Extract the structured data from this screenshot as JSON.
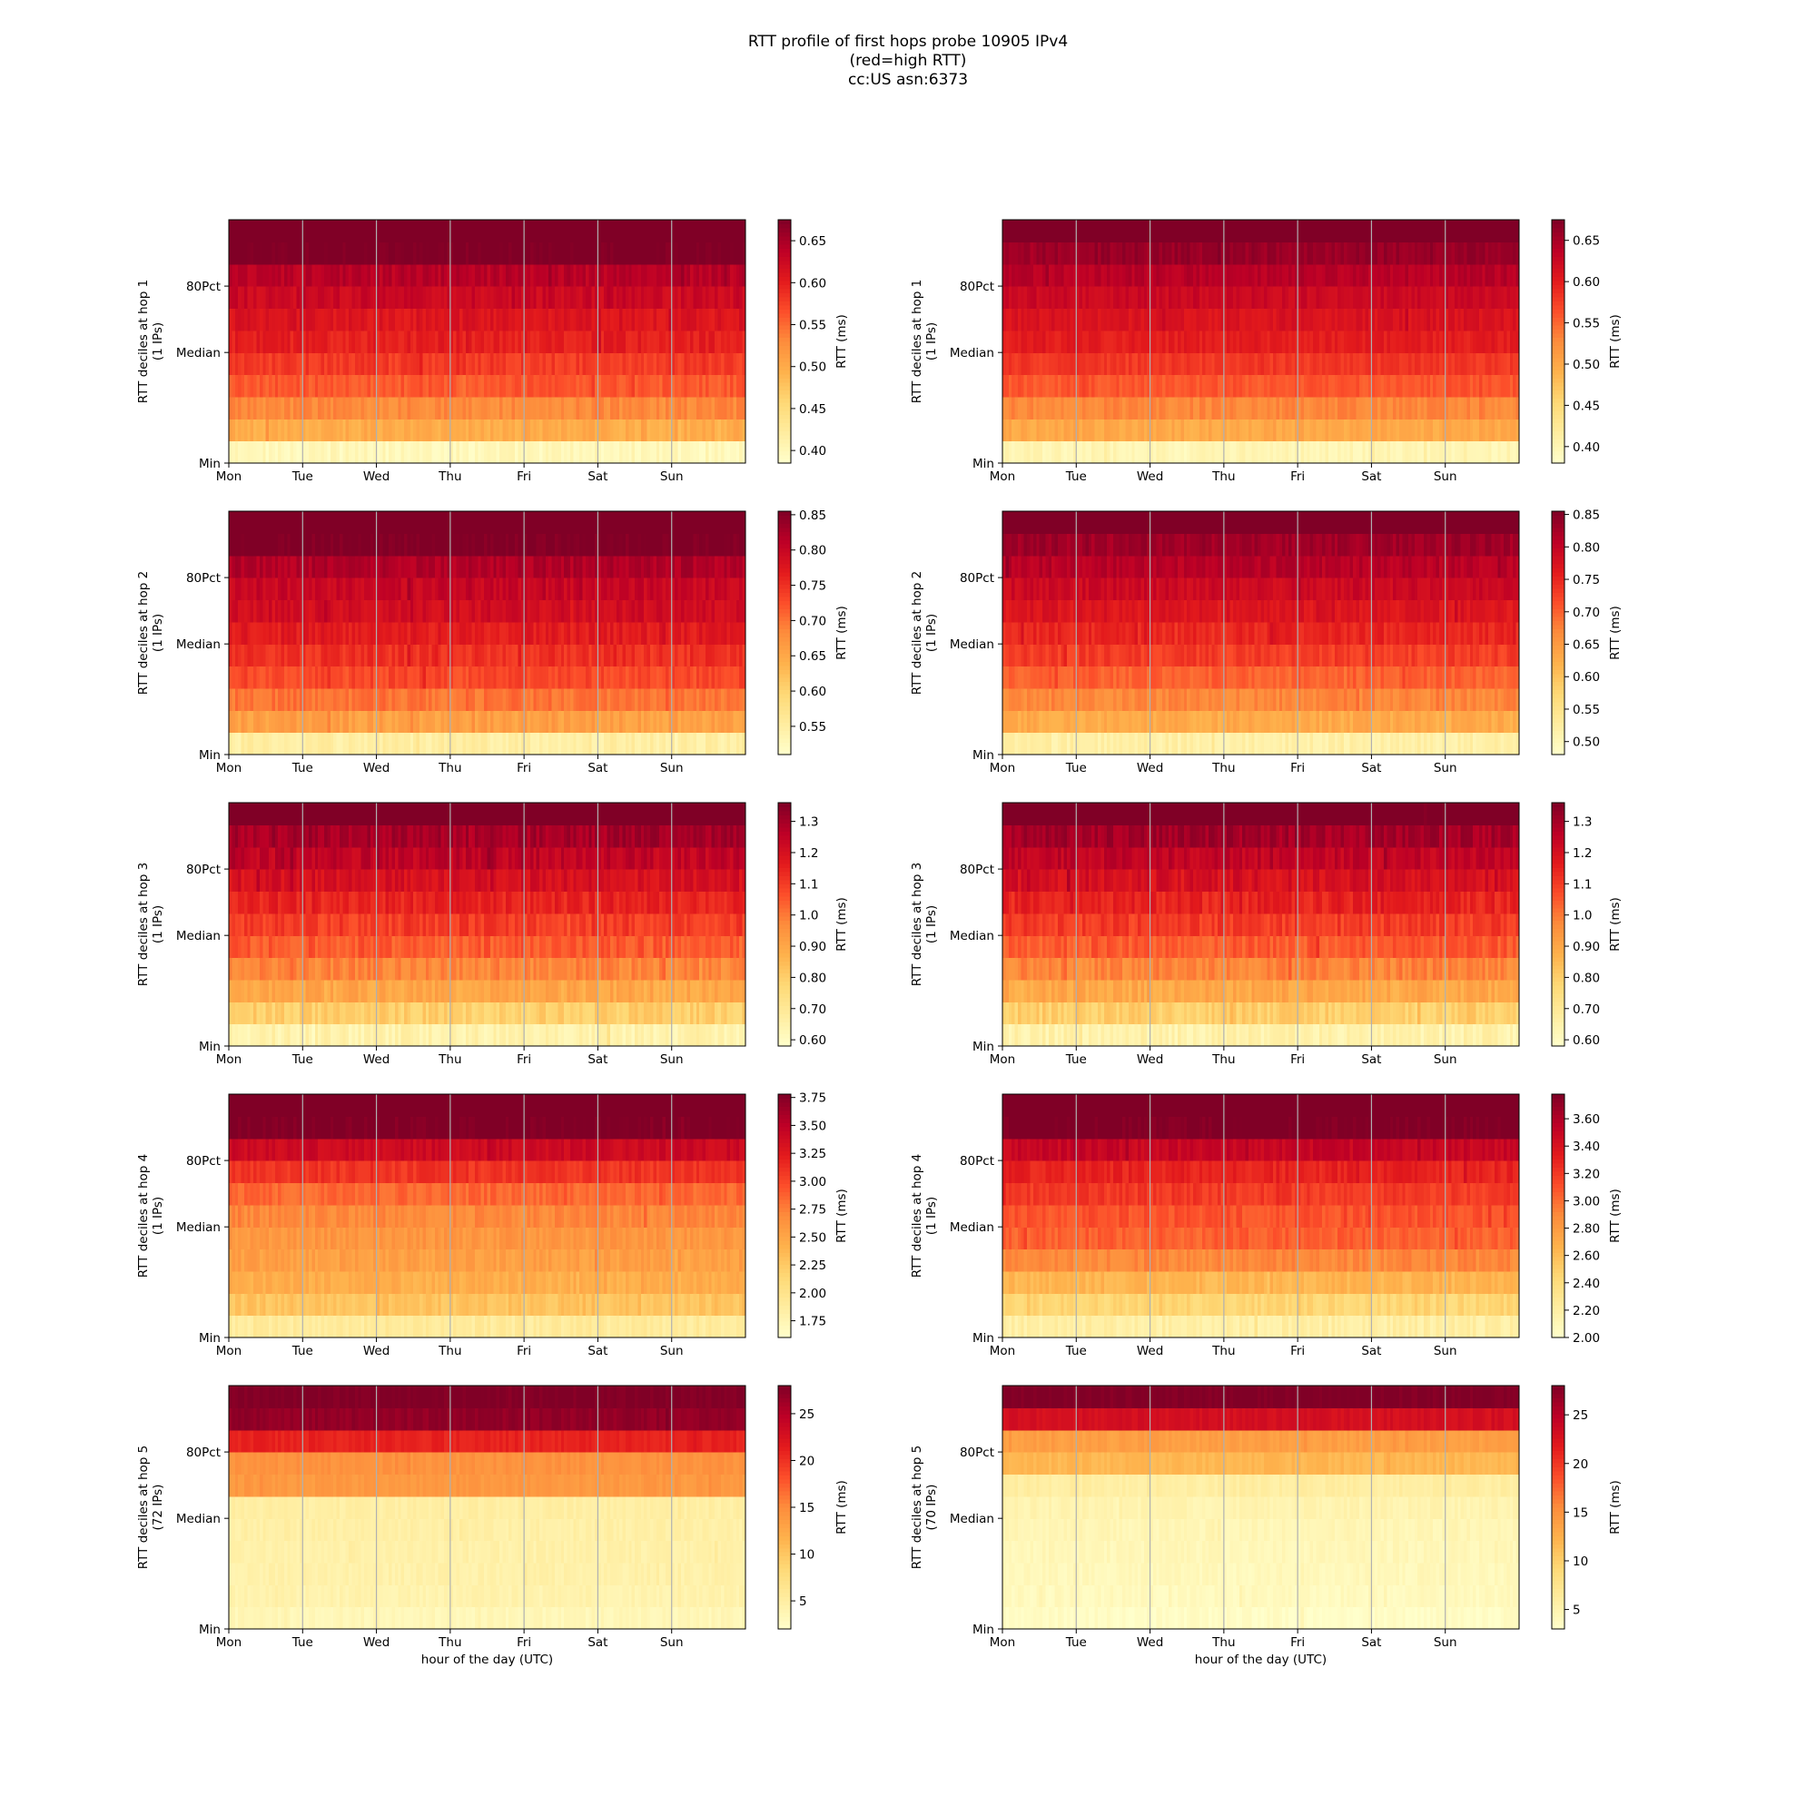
{
  "title_lines": [
    "RTT profile of first hops probe 10905 IPv4",
    "(red=high RTT)",
    "cc:US asn:6373"
  ],
  "colormap": "YlOrRd",
  "colors": {
    "low": "#ffffcc",
    "mid": "#fd8d3c",
    "high": "#800026",
    "gridline": "#b0b0b0"
  },
  "chart_data": [
    {
      "type": "heatmap",
      "hop": 1,
      "column": "left",
      "ylabel": "RTT deciles at hop 1",
      "ylabel2": "(1 IPs)",
      "x_ticks": [
        "Mon",
        "Tue",
        "Wed",
        "Thu",
        "Fri",
        "Sat",
        "Sun"
      ],
      "y_ticks": [
        "Min",
        "Median",
        "80Pct"
      ],
      "xlabel": "",
      "colorbar_label": "RTT (ms)",
      "colorbar_ticks": [
        0.4,
        0.45,
        0.5,
        0.55,
        0.6,
        0.65
      ],
      "vlim": [
        0.385,
        0.675
      ],
      "decile_rtt": [
        0.4,
        0.5,
        0.53,
        0.56,
        0.58,
        0.6,
        0.61,
        0.625,
        0.64,
        0.68,
        0.7
      ],
      "noise": 0.012
    },
    {
      "type": "heatmap",
      "hop": 1,
      "column": "right",
      "ylabel": "RTT deciles at hop 1",
      "ylabel2": "(1 IPs)",
      "x_ticks": [
        "Mon",
        "Tue",
        "Wed",
        "Thu",
        "Fri",
        "Sat",
        "Sun"
      ],
      "y_ticks": [
        "Min",
        "Median",
        "80Pct"
      ],
      "xlabel": "",
      "colorbar_label": "RTT (ms)",
      "colorbar_ticks": [
        0.4,
        0.45,
        0.5,
        0.55,
        0.6,
        0.65
      ],
      "vlim": [
        0.38,
        0.675
      ],
      "decile_rtt": [
        0.4,
        0.5,
        0.53,
        0.56,
        0.58,
        0.6,
        0.61,
        0.625,
        0.64,
        0.66,
        0.7
      ],
      "noise": 0.01
    },
    {
      "type": "heatmap",
      "hop": 2,
      "column": "left",
      "ylabel": "RTT deciles at hop 2",
      "ylabel2": "(1 IPs)",
      "x_ticks": [
        "Mon",
        "Tue",
        "Wed",
        "Thu",
        "Fri",
        "Sat",
        "Sun"
      ],
      "y_ticks": [
        "Min",
        "Median",
        "80Pct"
      ],
      "xlabel": "",
      "colorbar_label": "RTT (ms)",
      "colorbar_ticks": [
        0.55,
        0.6,
        0.65,
        0.7,
        0.75,
        0.8,
        0.85
      ],
      "vlim": [
        0.51,
        0.855
      ],
      "decile_rtt": [
        0.55,
        0.66,
        0.7,
        0.73,
        0.75,
        0.77,
        0.79,
        0.8,
        0.82,
        0.86,
        0.88
      ],
      "noise": 0.015
    },
    {
      "type": "heatmap",
      "hop": 2,
      "column": "right",
      "ylabel": "RTT deciles at hop 2",
      "ylabel2": "(1 IPs)",
      "x_ticks": [
        "Mon",
        "Tue",
        "Wed",
        "Thu",
        "Fri",
        "Sat",
        "Sun"
      ],
      "y_ticks": [
        "Min",
        "Median",
        "80Pct"
      ],
      "xlabel": "",
      "colorbar_label": "RTT (ms)",
      "colorbar_ticks": [
        0.5,
        0.55,
        0.6,
        0.65,
        0.7,
        0.75,
        0.8,
        0.85
      ],
      "vlim": [
        0.48,
        0.855
      ],
      "decile_rtt": [
        0.52,
        0.63,
        0.67,
        0.7,
        0.73,
        0.75,
        0.77,
        0.79,
        0.81,
        0.83,
        0.88
      ],
      "noise": 0.015
    },
    {
      "type": "heatmap",
      "hop": 3,
      "column": "left",
      "ylabel": "RTT deciles at hop 3",
      "ylabel2": "(1 IPs)",
      "x_ticks": [
        "Mon",
        "Tue",
        "Wed",
        "Thu",
        "Fri",
        "Sat",
        "Sun"
      ],
      "y_ticks": [
        "Min",
        "Median",
        "80Pct"
      ],
      "xlabel": "",
      "colorbar_label": "RTT (ms)",
      "colorbar_ticks": [
        0.6,
        0.7,
        0.8,
        0.9,
        1.0,
        1.1,
        1.2,
        1.3
      ],
      "vlim": [
        0.58,
        1.36
      ],
      "decile_rtt": [
        0.65,
        0.8,
        0.9,
        0.98,
        1.05,
        1.1,
        1.15,
        1.2,
        1.25,
        1.3,
        1.4
      ],
      "noise": 0.04
    },
    {
      "type": "heatmap",
      "hop": 3,
      "column": "right",
      "ylabel": "RTT deciles at hop 3",
      "ylabel2": "(1 IPs)",
      "x_ticks": [
        "Mon",
        "Tue",
        "Wed",
        "Thu",
        "Fri",
        "Sat",
        "Sun"
      ],
      "y_ticks": [
        "Min",
        "Median",
        "80Pct"
      ],
      "xlabel": "",
      "colorbar_label": "RTT (ms)",
      "colorbar_ticks": [
        0.6,
        0.7,
        0.8,
        0.9,
        1.0,
        1.1,
        1.2,
        1.3
      ],
      "vlim": [
        0.58,
        1.36
      ],
      "decile_rtt": [
        0.65,
        0.8,
        0.9,
        0.98,
        1.05,
        1.1,
        1.15,
        1.2,
        1.25,
        1.3,
        1.4
      ],
      "noise": 0.04
    },
    {
      "type": "heatmap",
      "hop": 4,
      "column": "left",
      "ylabel": "RTT deciles at hop 4",
      "ylabel2": "(1 IPs)",
      "x_ticks": [
        "Mon",
        "Tue",
        "Wed",
        "Thu",
        "Fri",
        "Sat",
        "Sun"
      ],
      "y_ticks": [
        "Min",
        "Median",
        "80Pct"
      ],
      "xlabel": "",
      "colorbar_label": "RTT (ms)",
      "colorbar_ticks": [
        1.75,
        2.0,
        2.25,
        2.5,
        2.75,
        3.0,
        3.25,
        3.5,
        3.75
      ],
      "vlim": [
        1.6,
        3.78
      ],
      "decile_rtt": [
        1.9,
        2.3,
        2.45,
        2.55,
        2.62,
        2.7,
        2.85,
        3.1,
        3.4,
        3.8,
        4.0
      ],
      "noise": 0.08
    },
    {
      "type": "heatmap",
      "hop": 4,
      "column": "right",
      "ylabel": "RTT deciles at hop 4",
      "ylabel2": "(1 IPs)",
      "x_ticks": [
        "Mon",
        "Tue",
        "Wed",
        "Thu",
        "Fri",
        "Sat",
        "Sun"
      ],
      "y_ticks": [
        "Min",
        "Median",
        "80Pct"
      ],
      "xlabel": "",
      "colorbar_label": "RTT (ms)",
      "colorbar_ticks": [
        2.0,
        2.2,
        2.4,
        2.6,
        2.8,
        3.0,
        3.2,
        3.4,
        3.6
      ],
      "vlim": [
        2.0,
        3.78
      ],
      "decile_rtt": [
        2.2,
        2.45,
        2.65,
        2.9,
        3.05,
        3.1,
        3.2,
        3.3,
        3.5,
        3.8,
        3.9
      ],
      "noise": 0.07
    },
    {
      "type": "heatmap",
      "hop": 5,
      "column": "left",
      "ylabel": "RTT deciles at hop 5",
      "ylabel2": "(72 IPs)",
      "x_ticks": [
        "Mon",
        "Tue",
        "Wed",
        "Thu",
        "Fri",
        "Sat",
        "Sun"
      ],
      "y_ticks": [
        "Min",
        "Median",
        "80Pct"
      ],
      "xlabel": "hour of the day (UTC)",
      "colorbar_label": "RTT (ms)",
      "colorbar_ticks": [
        5,
        10,
        15,
        20,
        25
      ],
      "vlim": [
        2,
        28
      ],
      "decile_rtt": [
        3.5,
        4.2,
        4.5,
        4.6,
        4.8,
        5.0,
        14,
        14.5,
        21,
        27,
        28
      ],
      "noise": 0.6
    },
    {
      "type": "heatmap",
      "hop": 5,
      "column": "right",
      "ylabel": "RTT deciles at hop 5",
      "ylabel2": "(70 IPs)",
      "x_ticks": [
        "Mon",
        "Tue",
        "Wed",
        "Thu",
        "Fri",
        "Sat",
        "Sun"
      ],
      "y_ticks": [
        "Min",
        "Median",
        "80Pct"
      ],
      "xlabel": "hour of the day (UTC)",
      "colorbar_label": "RTT (ms)",
      "colorbar_ticks": [
        5,
        10,
        15,
        20,
        25
      ],
      "vlim": [
        3,
        28
      ],
      "decile_rtt": [
        3.5,
        4.0,
        4.2,
        4.4,
        4.6,
        5.0,
        6.0,
        12,
        14,
        23,
        28
      ],
      "noise": 0.6
    }
  ]
}
